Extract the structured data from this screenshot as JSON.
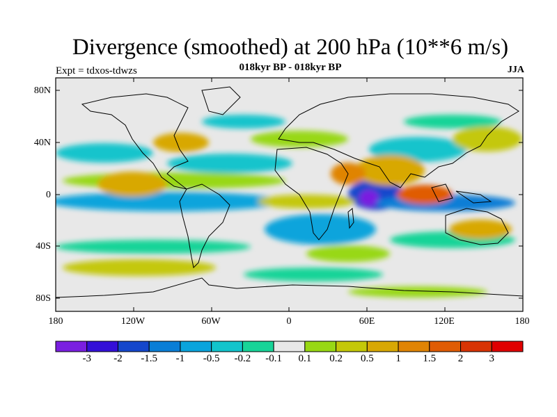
{
  "title": "Divergence (smoothed) at 200 hPa (10**6 m/s)",
  "subtitle": "018kyr BP - 018kyr BP",
  "experiment": "Expt = tdxos-tdwzs",
  "season": "JJA",
  "colors": {
    "background": "#ffffff",
    "near_zero": "#e8e8e8",
    "coastline": "#000000"
  },
  "map": {
    "lat_labels": [
      "80N",
      "40N",
      "0",
      "40S",
      "80S"
    ],
    "lon_labels": [
      "180",
      "120W",
      "60W",
      "0",
      "60E",
      "120E",
      "180"
    ]
  },
  "colorbar": {
    "colors": [
      "#7a1fe0",
      "#3410d8",
      "#1547cc",
      "#0a7ed6",
      "#0aa4dc",
      "#12c4cc",
      "#18d498",
      "#e8e8e8",
      "#98d814",
      "#c4c808",
      "#d8a804",
      "#e08404",
      "#e05c04",
      "#d83404",
      "#e00000"
    ],
    "labels": [
      "-3",
      "-2",
      "-1.5",
      "-1",
      "-0.5",
      "-0.2",
      "-0.1",
      "0.1",
      "0.2",
      "0.5",
      "1",
      "1.5",
      "2",
      "3"
    ]
  }
}
